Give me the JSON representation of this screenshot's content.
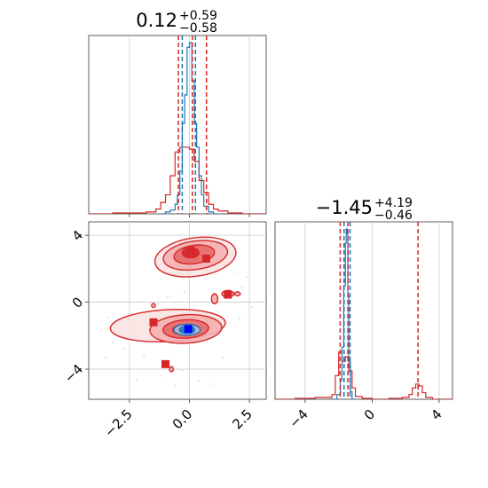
{
  "chart_data": [
    {
      "type": "histogram",
      "panel": "x-marginal",
      "title": "0.12",
      "title_sup": "+0.59",
      "title_sub": "−0.58",
      "xlim": [
        -4.2,
        3.2
      ],
      "grid": true,
      "series": [
        {
          "name": "",
          "color": "#d62728",
          "bin_edges": [
            -4.2,
            -3.2,
            -2.2,
            -1.8,
            -1.4,
            -1.2,
            -1.0,
            -0.8,
            -0.6,
            -0.4,
            -0.2,
            0.0,
            0.2,
            0.4,
            0.6,
            0.8,
            1.0,
            1.2,
            1.6,
            2.2,
            3.2
          ],
          "counts": [
            0,
            1,
            1,
            2,
            5,
            12,
            20,
            40,
            65,
            70,
            70,
            68,
            55,
            35,
            22,
            10,
            5,
            3,
            1,
            0
          ]
        },
        {
          "name": "",
          "color": "#1f77b4",
          "bin_edges": [
            -1.2,
            -1.0,
            -0.8,
            -0.6,
            -0.5,
            -0.4,
            -0.3,
            -0.2,
            -0.1,
            0.0,
            0.1,
            0.2,
            0.3,
            0.4,
            0.5,
            0.6,
            0.8,
            1.0,
            1.2
          ],
          "counts": [
            0,
            2,
            4,
            10,
            20,
            45,
            95,
            125,
            175,
            180,
            140,
            95,
            70,
            40,
            20,
            8,
            2,
            0
          ]
        }
      ],
      "vlines": [
        {
          "x": -0.46,
          "color": "#d62728"
        },
        {
          "x": 0.12,
          "color": "#d62728"
        },
        {
          "x": 0.71,
          "color": "#d62728"
        },
        {
          "x": -0.3,
          "color": "#1f77b4"
        },
        {
          "x": 0.25,
          "color": "#1f77b4"
        }
      ]
    },
    {
      "type": "contour",
      "panel": "joint",
      "xlim": [
        -4.2,
        3.2
      ],
      "ylim": [
        -5.8,
        4.8
      ],
      "x_ticks": [
        -2.5,
        0.0,
        2.5
      ],
      "x_tick_labels": [
        "−2.5",
        "0.0",
        "2.5"
      ],
      "y_ticks": [
        -4,
        0,
        4
      ],
      "y_tick_labels": [
        "−4",
        "0",
        "4"
      ],
      "grid": true,
      "contours": [
        {
          "color": "#d62728",
          "levels": [
            {
              "cx": 0.25,
              "cy": 2.7,
              "rx": 1.7,
              "ry": 1.15,
              "rot": -8,
              "fill": "#fbe3e3"
            },
            {
              "cx": 0.25,
              "cy": 2.8,
              "rx": 1.35,
              "ry": 0.85,
              "rot": -8,
              "fill": "#f3b0b0"
            },
            {
              "cx": 0.2,
              "cy": 2.85,
              "rx": 0.85,
              "ry": 0.55,
              "rot": -8,
              "fill": "#e86a6a"
            },
            {
              "cx": 0.05,
              "cy": 2.95,
              "rx": 0.35,
              "ry": 0.3,
              "rot": 0,
              "fill": "#d62728"
            }
          ]
        },
        {
          "color": "#d62728",
          "levels": [
            {
              "cx": -0.9,
              "cy": -1.4,
              "rx": 2.4,
              "ry": 0.95,
              "rot": -3,
              "fill": "#fbe3e3"
            },
            {
              "cx": -0.15,
              "cy": -1.6,
              "rx": 1.5,
              "ry": 0.85,
              "rot": -3,
              "fill": "#f3b0b0"
            },
            {
              "cx": -0.15,
              "cy": -1.6,
              "rx": 0.95,
              "ry": 0.55,
              "rot": -3,
              "fill": "#e86a6a"
            },
            {
              "cx": -0.15,
              "cy": -1.65,
              "rx": 0.55,
              "ry": 0.32,
              "rot": 0,
              "fill": "#d62728"
            }
          ]
        },
        {
          "color": "#1f77b4",
          "levels": [
            {
              "cx": -0.1,
              "cy": -1.65,
              "rx": 0.55,
              "ry": 0.33,
              "rot": 0,
              "fill": "#aec7e8"
            },
            {
              "cx": -0.1,
              "cy": -1.65,
              "rx": 0.32,
              "ry": 0.22,
              "rot": 0,
              "fill": "#1f77b4"
            }
          ]
        },
        {
          "color": "#d62728",
          "levels": [
            {
              "cx": 1.05,
              "cy": 0.2,
              "rx": 0.13,
              "ry": 0.3,
              "rot": 0,
              "fill": "#f3b0b0"
            },
            {
              "cx": 1.6,
              "cy": 0.5,
              "rx": 0.25,
              "ry": 0.2,
              "rot": 0,
              "fill": "#f3b0b0"
            },
            {
              "cx": 2.0,
              "cy": 0.5,
              "rx": 0.12,
              "ry": 0.12,
              "rot": 0,
              "fill": "#f3b0b0"
            },
            {
              "cx": -1.5,
              "cy": -0.2,
              "rx": 0.08,
              "ry": 0.12,
              "rot": 0,
              "fill": "#f3b0b0"
            },
            {
              "cx": -0.75,
              "cy": -4.0,
              "rx": 0.08,
              "ry": 0.15,
              "rot": 0,
              "fill": "#f3b0b0"
            }
          ]
        }
      ],
      "markers": [
        {
          "x": 0.05,
          "y": 3.1,
          "color": "#d62728"
        },
        {
          "x": 0.7,
          "y": 2.6,
          "color": "#d62728"
        },
        {
          "x": 1.6,
          "y": 0.45,
          "color": "#d62728"
        },
        {
          "x": -1.5,
          "y": -1.2,
          "color": "#d62728"
        },
        {
          "x": -1.0,
          "y": -3.7,
          "color": "#d62728"
        },
        {
          "x": -0.05,
          "y": -1.6,
          "color": "#0000ff"
        }
      ],
      "scatter_points": [
        [
          -3.4,
          -0.9
        ],
        [
          -3.0,
          -1.8
        ],
        [
          -2.7,
          -2.8
        ],
        [
          -3.5,
          -3.3
        ],
        [
          -2.4,
          -0.7
        ],
        [
          -1.9,
          -3.2
        ],
        [
          -1.2,
          -4.4
        ],
        [
          -0.6,
          -5.0
        ],
        [
          0.4,
          -4.7
        ],
        [
          0.9,
          -4.9
        ],
        [
          1.4,
          -3.3
        ],
        [
          2.1,
          -1.0
        ],
        [
          2.4,
          1.5
        ],
        [
          1.9,
          1.8
        ],
        [
          2.6,
          -0.3
        ],
        [
          -0.3,
          -4.1
        ],
        [
          -2.2,
          -4.6
        ],
        [
          -3.2,
          -2.4
        ],
        [
          1.2,
          -0.6
        ],
        [
          -0.9,
          0.3
        ],
        [
          -1.3,
          -0.1
        ],
        [
          -0.2,
          0.6
        ],
        [
          -2.0,
          0.0
        ],
        [
          0.7,
          1.4
        ],
        [
          2.2,
          0.9
        ]
      ]
    },
    {
      "type": "histogram",
      "panel": "y-marginal",
      "title": "−1.45",
      "title_sup": "+4.19",
      "title_sub": "−0.46",
      "xlim": [
        -5.8,
        4.8
      ],
      "x_ticks": [
        -4,
        0,
        4
      ],
      "x_tick_labels": [
        "−4",
        "0",
        "4"
      ],
      "grid": true,
      "series": [
        {
          "name": "",
          "color": "#d62728",
          "bin_edges": [
            -5.8,
            -4.6,
            -3.4,
            -2.4,
            -2.2,
            -2.0,
            -1.8,
            -1.6,
            -1.4,
            -1.2,
            -1.0,
            -0.6,
            0.0,
            1.0,
            1.8,
            2.2,
            2.4,
            2.6,
            2.8,
            3.0,
            3.2,
            3.6,
            4.8
          ],
          "counts": [
            0,
            1,
            2,
            5,
            25,
            50,
            40,
            45,
            30,
            12,
            3,
            1,
            0,
            1,
            2,
            5,
            12,
            16,
            14,
            7,
            2,
            0
          ]
        },
        {
          "name": "",
          "color": "#1f77b4",
          "bin_edges": [
            -2.3,
            -2.1,
            -1.9,
            -1.8,
            -1.7,
            -1.6,
            -1.55,
            -1.5,
            -1.45,
            -1.4,
            -1.3,
            -1.2,
            -1.0
          ],
          "counts": [
            0,
            5,
            20,
            55,
            120,
            165,
            180,
            175,
            110,
            40,
            8,
            0
          ]
        }
      ],
      "vlines": [
        {
          "x": -1.91,
          "color": "#d62728"
        },
        {
          "x": -1.45,
          "color": "#d62728"
        },
        {
          "x": 2.74,
          "color": "#d62728"
        },
        {
          "x": -1.68,
          "color": "#1f77b4"
        },
        {
          "x": -1.32,
          "color": "#1f77b4"
        }
      ]
    }
  ]
}
